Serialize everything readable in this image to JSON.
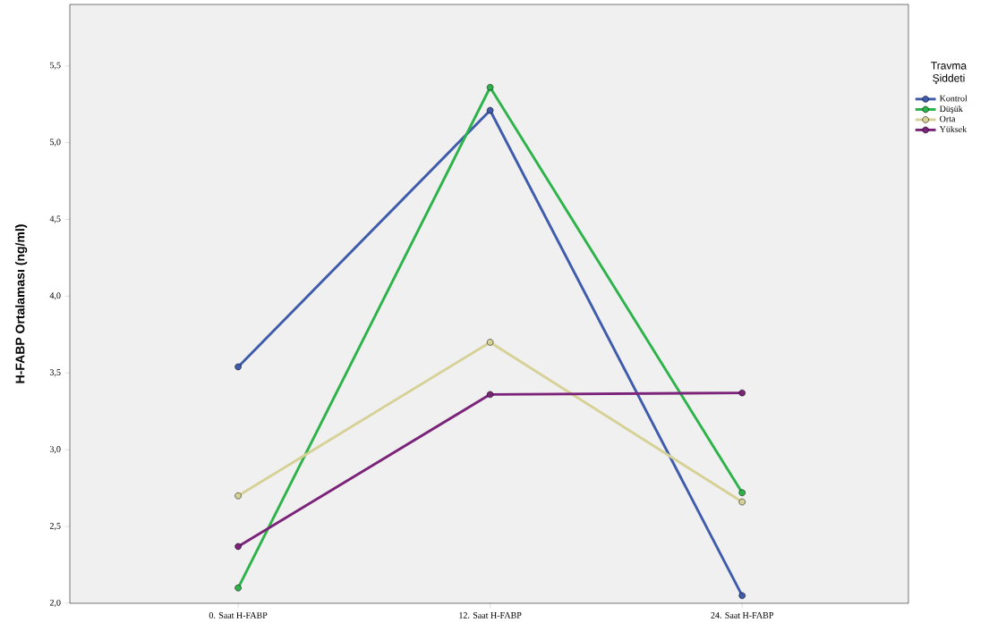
{
  "chart_data": {
    "type": "line",
    "ylabel": "H-FABP Ortalaması (ng/ml)",
    "legend_title": "Travma Şiddeti",
    "legend": "right",
    "marker": "circle",
    "line_style": "solid",
    "categories": [
      "0. Saat H-FABP",
      "12. Saat H-FABP",
      "24. Saat H-FABP"
    ],
    "ylim": [
      2.0,
      5.9
    ],
    "yticks": [
      {
        "value": 2.0,
        "label": "2,0"
      },
      {
        "value": 2.5,
        "label": "2,5"
      },
      {
        "value": 3.0,
        "label": "3,0"
      },
      {
        "value": 3.5,
        "label": "3,5"
      },
      {
        "value": 4.0,
        "label": "4,0"
      },
      {
        "value": 4.5,
        "label": "4,5"
      },
      {
        "value": 5.0,
        "label": "5,0"
      },
      {
        "value": 5.5,
        "label": "5,5"
      }
    ],
    "series": [
      {
        "name": "Kontrol",
        "color": "#3f5bab",
        "values": [
          3.54,
          5.21,
          2.05
        ]
      },
      {
        "name": "Düşük",
        "color": "#2db34a",
        "values": [
          2.1,
          5.36,
          2.72
        ]
      },
      {
        "name": "Orta",
        "color": "#d6d196",
        "values": [
          2.7,
          3.7,
          2.66
        ]
      },
      {
        "name": "Yüksek",
        "color": "#7b2379",
        "values": [
          2.37,
          3.36,
          3.37
        ]
      }
    ]
  }
}
